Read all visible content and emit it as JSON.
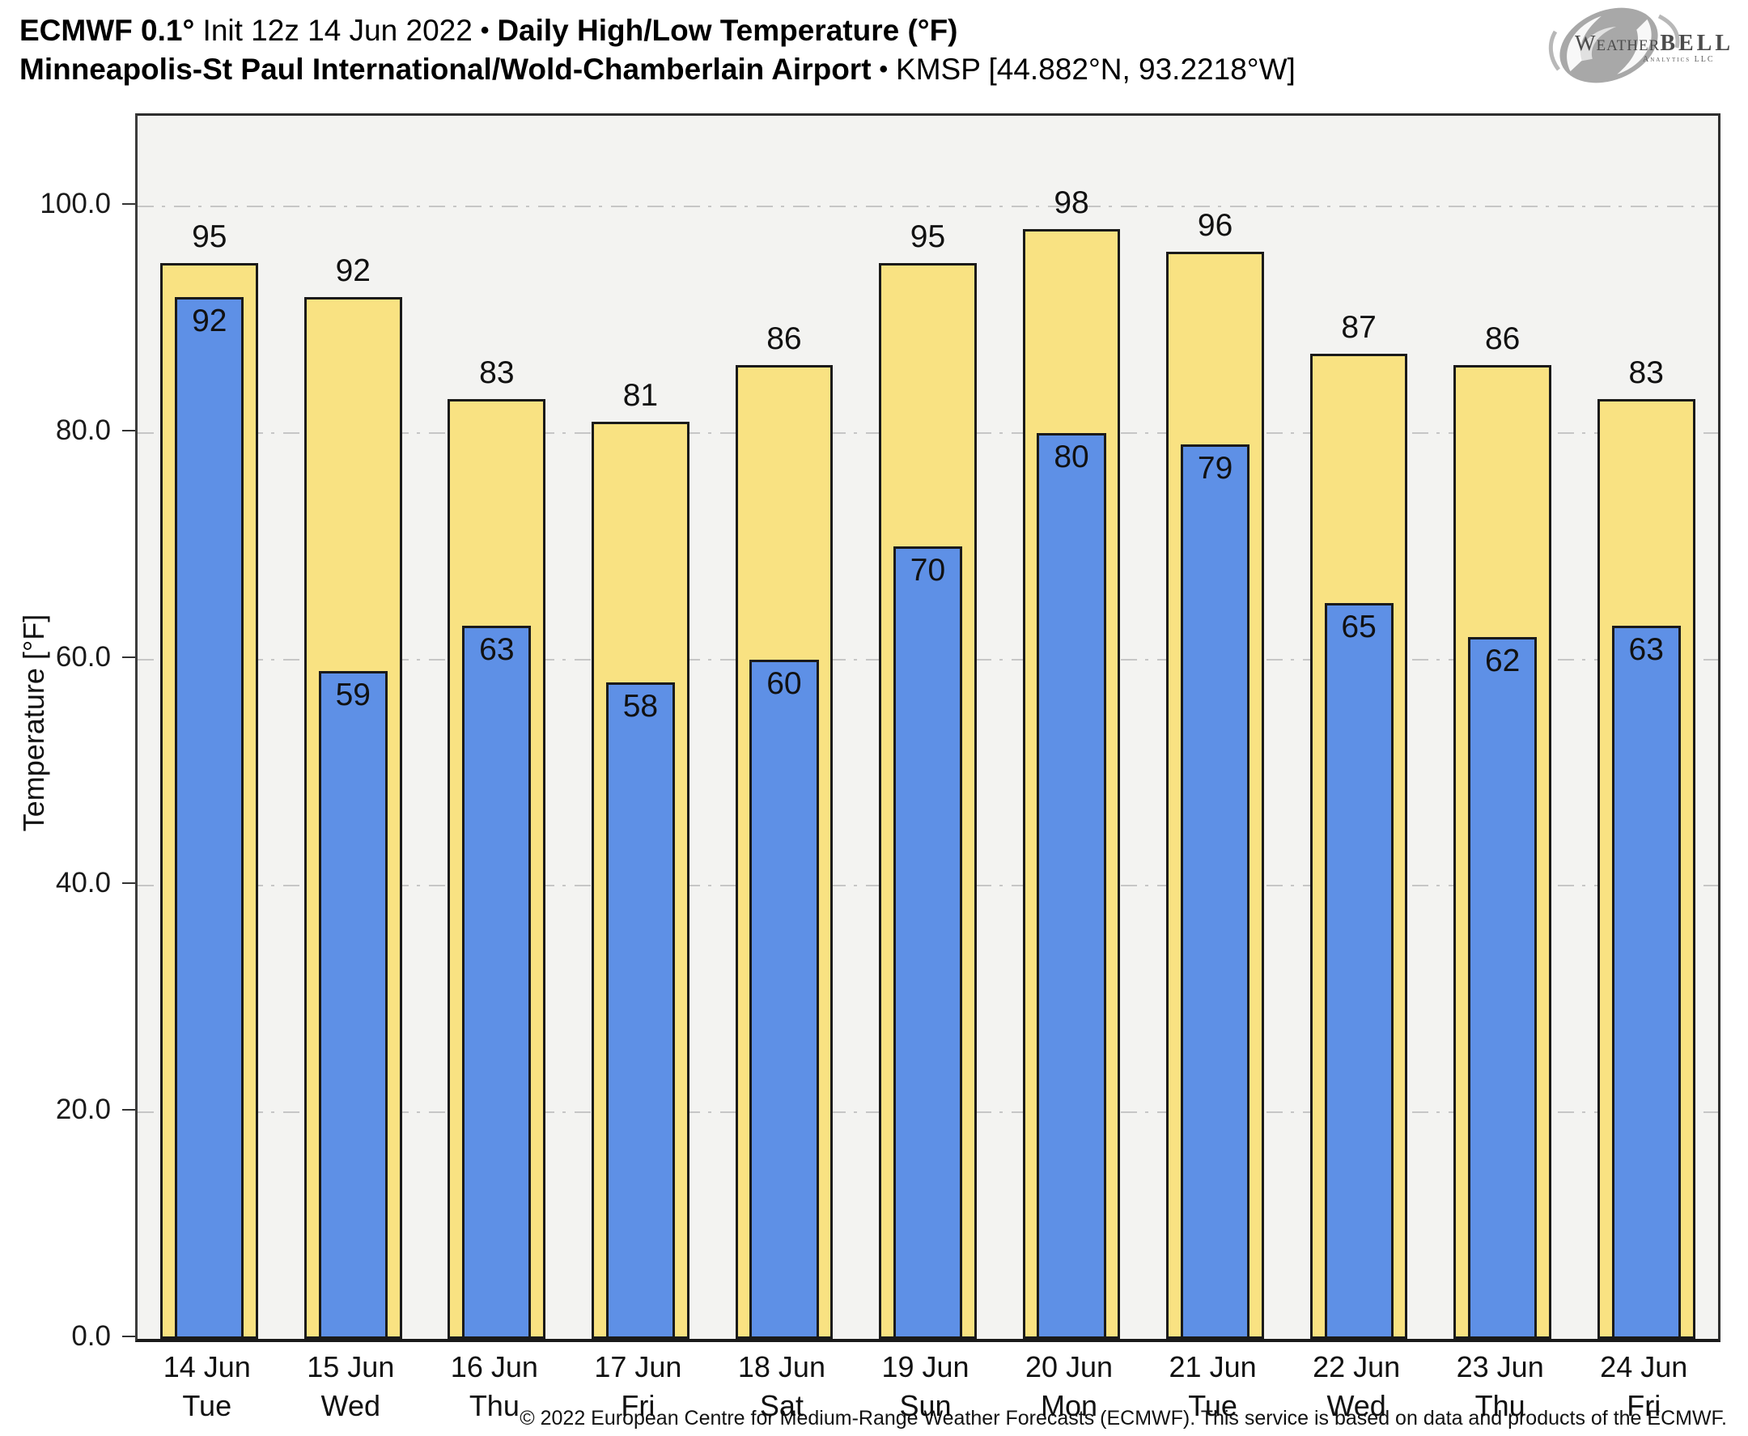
{
  "header": {
    "line1": {
      "model": "ECMWF 0.1°",
      "init": " Init 12z 14 Jun 2022",
      "sep": "•",
      "product": "Daily High/Low Temperature (°F)"
    },
    "line2": {
      "station": "Minneapolis-St Paul International/Wold-Chamberlain Airport",
      "sep": "•",
      "station_id": "KMSP [44.882°N, 93.2218°W]"
    }
  },
  "logo": {
    "weather": "Weather",
    "bell": "BELL",
    "sub": "Analytics LLC"
  },
  "chart_data": {
    "type": "bar",
    "title": "Daily High/Low Temperature (°F)",
    "station": "Minneapolis-St Paul International/Wold-Chamberlain Airport (KMSP)",
    "categories": [
      "14 Jun",
      "15 Jun",
      "16 Jun",
      "17 Jun",
      "18 Jun",
      "19 Jun",
      "20 Jun",
      "21 Jun",
      "22 Jun",
      "23 Jun",
      "24 Jun"
    ],
    "weekdays": [
      "Tue",
      "Wed",
      "Thu",
      "Fri",
      "Sat",
      "Sun",
      "Mon",
      "Tue",
      "Wed",
      "Thu",
      "Fri"
    ],
    "series": [
      {
        "name": "High",
        "color": "#f9e282",
        "values": [
          95,
          92,
          83,
          81,
          86,
          95,
          98,
          96,
          87,
          86,
          83
        ]
      },
      {
        "name": "Low",
        "color": "#5e90e6",
        "values": [
          92,
          59,
          63,
          58,
          60,
          70,
          80,
          79,
          65,
          62,
          63
        ]
      }
    ],
    "ylabel": "Temperature [°F]",
    "ytick_values": [
      0,
      20,
      40,
      60,
      80,
      100
    ],
    "ytick_labels": [
      "0.0",
      "20.0",
      "40.0",
      "60.0",
      "80.0",
      "100.0"
    ],
    "ylim": [
      0,
      108
    ],
    "grid": "horizontal dash-dot gridlines at labeled ticks",
    "legend": "none",
    "plot_bg": "#f3f3f1",
    "bar_border": "#1a1a1a",
    "grid_color": "#c6c6c6"
  },
  "footer": {
    "copyright": "© 2022 European Centre for Medium-Range Weather Forecasts (ECMWF). This service is based on data and products of the ECMWF."
  }
}
